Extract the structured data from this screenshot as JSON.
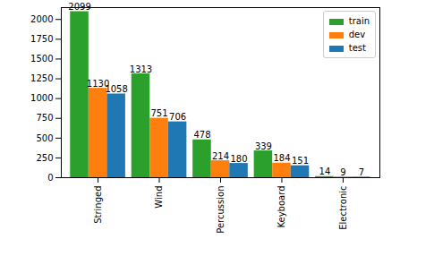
{
  "chart_data": {
    "type": "bar",
    "categories": [
      "Stringed",
      "Wind",
      "Percussion",
      "Keyboard",
      "Electronic"
    ],
    "series": [
      {
        "name": "train",
        "color": "#2ca02c",
        "values": [
          2099,
          1313,
          478,
          339,
          14
        ]
      },
      {
        "name": "dev",
        "color": "#ff7f0e",
        "values": [
          1130,
          751,
          214,
          184,
          9
        ]
      },
      {
        "name": "test",
        "color": "#1f77b4",
        "values": [
          1058,
          706,
          180,
          151,
          7
        ]
      }
    ],
    "ylim": [
      0,
      2150
    ],
    "yticks": [
      0,
      250,
      500,
      750,
      1000,
      1250,
      1500,
      1750,
      2000
    ],
    "grid": false,
    "legend": "upper right",
    "data_labels": true
  }
}
